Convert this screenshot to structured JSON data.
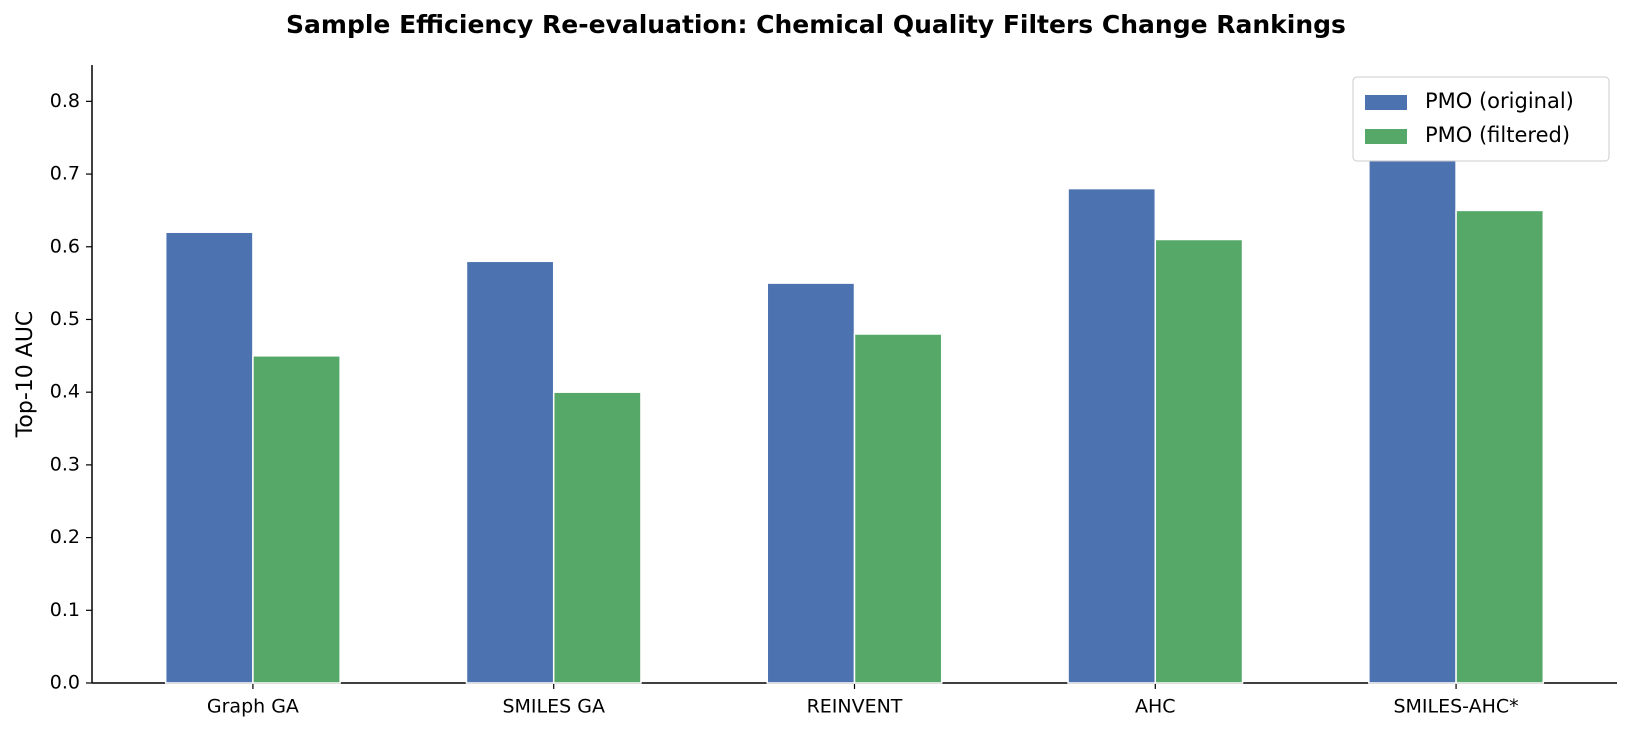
{
  "chart_data": {
    "type": "bar",
    "title": "Sample Efficiency Re-evaluation: Chemical Quality Filters Change Rankings",
    "y_label": "Top-10 AUC",
    "categories": [
      "Graph GA",
      "SMILES GA",
      "REINVENT",
      "AHC",
      "SMILES-AHC*"
    ],
    "series": [
      {
        "name": "PMO (original)",
        "color": "#4c72b0",
        "values": [
          0.62,
          0.58,
          0.55,
          0.68,
          0.72
        ]
      },
      {
        "name": "PMO (filtered)",
        "color": "#55a868",
        "values": [
          0.45,
          0.4,
          0.48,
          0.61,
          0.65
        ]
      }
    ],
    "ylim": [
      0,
      0.85
    ],
    "yticks": [
      {
        "value": 0,
        "label": "0.0"
      },
      0.1,
      0.2,
      0.3,
      0.4,
      0.5,
      0.6,
      0.7,
      0.8
    ],
    "legend": "upper right",
    "grid": false
  }
}
